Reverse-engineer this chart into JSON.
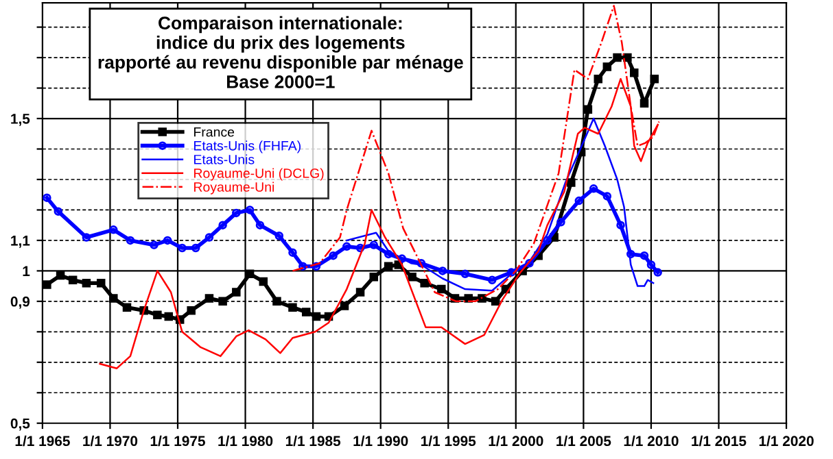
{
  "chart_data": {
    "type": "line",
    "title": "Comparaison internationale:\nindice du prix des logements\nrapporté au revenu disponible par ménage\nBase 2000=1",
    "xlim": [
      "1965-01-01",
      "2020-01-01"
    ],
    "xticks": [
      {
        "value": "1965-01-01",
        "label": "1/1 1965"
      },
      {
        "value": "1970-01-01",
        "label": "1/1 1970"
      },
      {
        "value": "1975-01-01",
        "label": "1/1 1975"
      },
      {
        "value": "1980-01-01",
        "label": "1/1 1980"
      },
      {
        "value": "1985-01-01",
        "label": "1/1 1985"
      },
      {
        "value": "1990-01-01",
        "label": "1/1 1990"
      },
      {
        "value": "1995-01-01",
        "label": "1/1 1995"
      },
      {
        "value": "2000-01-01",
        "label": "1/1 2000"
      },
      {
        "value": "2005-01-01",
        "label": "1/1 2005"
      },
      {
        "value": "2010-01-01",
        "label": "1/1 2010"
      },
      {
        "value": "2015-01-01",
        "label": "1/1 2015"
      },
      {
        "value": "2020-01-01",
        "label": "1/1 2020"
      }
    ],
    "ylim": [
      0.5,
      1.88
    ],
    "yticks": [
      {
        "value": 0.5,
        "label": "0,5"
      },
      {
        "value": 0.6,
        "label": null
      },
      {
        "value": 0.7,
        "label": null
      },
      {
        "value": 0.8,
        "label": null
      },
      {
        "value": 0.9,
        "label": "0,9"
      },
      {
        "value": 1,
        "label": "1"
      },
      {
        "value": 1.1,
        "label": "1,1"
      },
      {
        "value": 1.2,
        "label": null
      },
      {
        "value": 1.3,
        "label": null
      },
      {
        "value": 1.4,
        "label": null
      },
      {
        "value": 1.5,
        "label": "1,5"
      },
      {
        "value": 1.6,
        "label": null
      },
      {
        "value": 1.7,
        "label": null
      },
      {
        "value": 1.8,
        "label": null
      }
    ],
    "grid": true,
    "legend": "top left",
    "series": [
      {
        "name": "France",
        "color": "#000000",
        "marker": "square",
        "line_style": "solid",
        "x": [
          "1965-05",
          "1966-05",
          "1967-04",
          "1968-04",
          "1969-05",
          "1970-04",
          "1971-04",
          "1972-07",
          "1973-07",
          "1974-05",
          "1975-03",
          "1976-01",
          "1977-05",
          "1978-05",
          "1979-05",
          "1980-05",
          "1981-05",
          "1982-05",
          "1983-07",
          "1984-07",
          "1985-04",
          "1986-03",
          "1987-05",
          "1988-07",
          "1989-07",
          "1990-08",
          "1991-05",
          "1992-05",
          "1993-04",
          "1994-07",
          "1995-07",
          "1996-07",
          "1997-07",
          "1998-07",
          "1999-04",
          "2000-07",
          "2001-09",
          "2002-11",
          "2004-02",
          "2004-11",
          "2005-05",
          "2006-02",
          "2006-10",
          "2007-07",
          "2008-04",
          "2008-10",
          "2009-07",
          "2010-04"
        ],
        "values": [
          0.955,
          0.985,
          0.97,
          0.96,
          0.96,
          0.91,
          0.88,
          0.87,
          0.855,
          0.85,
          0.84,
          0.87,
          0.91,
          0.9,
          0.93,
          0.99,
          0.965,
          0.9,
          0.88,
          0.865,
          0.85,
          0.85,
          0.885,
          0.93,
          0.98,
          1.015,
          1.02,
          0.98,
          0.96,
          0.94,
          0.91,
          0.91,
          0.91,
          0.9,
          0.94,
          1.0,
          1.05,
          1.11,
          1.29,
          1.39,
          1.53,
          1.63,
          1.67,
          1.7,
          1.7,
          1.65,
          1.55,
          1.63
        ]
      },
      {
        "name": "Etats-Unis (FHFA)",
        "color": "#0000ff",
        "marker": "circle",
        "line_style": "solid",
        "x": [
          "1965-05",
          "1966-03",
          "1968-04",
          "1970-04",
          "1971-07",
          "1973-04",
          "1974-04",
          "1975-05",
          "1976-05",
          "1977-05",
          "1978-05",
          "1979-05",
          "1980-05",
          "1981-02",
          "1982-07",
          "1983-07",
          "1984-04",
          "1985-04",
          "1986-07",
          "1987-07",
          "1988-07",
          "1989-07",
          "1990-08",
          "1991-08",
          "1993-01",
          "1994-08",
          "1996-04",
          "1998-04",
          "1999-09",
          "2001-01",
          "2002-05",
          "2003-05",
          "2004-09",
          "2005-10",
          "2006-10",
          "2007-10",
          "2008-07",
          "2009-07",
          "2010-01",
          "2010-07"
        ],
        "values": [
          1.24,
          1.195,
          1.11,
          1.135,
          1.1,
          1.085,
          1.1,
          1.075,
          1.075,
          1.11,
          1.15,
          1.19,
          1.2,
          1.15,
          1.115,
          1.06,
          1.015,
          1.015,
          1.05,
          1.08,
          1.075,
          1.085,
          1.055,
          1.04,
          1.025,
          1.0,
          0.99,
          0.97,
          0.995,
          1.025,
          1.1,
          1.16,
          1.23,
          1.27,
          1.245,
          1.15,
          1.055,
          1.05,
          1.02,
          0.995
        ]
      },
      {
        "name": "Etats-Unis",
        "color": "#0000ff",
        "marker": "none",
        "line_style": "solid",
        "x": [
          "1987-07",
          "1989-09",
          "1990-08",
          "1992-04",
          "1993-01",
          "1994-08",
          "1996-04",
          "1998-04",
          "1999-09",
          "2001-01",
          "2002-05",
          "2003-09",
          "2004-09",
          "2005-10",
          "2006-08",
          "2007-07",
          "2008-01",
          "2008-07",
          "2009-01",
          "2009-07",
          "2009-10",
          "2010-03"
        ],
        "values": [
          1.1,
          1.125,
          1.065,
          1.025,
          1.02,
          0.975,
          0.94,
          0.935,
          0.99,
          1.03,
          1.12,
          1.29,
          1.39,
          1.5,
          1.41,
          1.3,
          1.21,
          1.02,
          0.95,
          0.95,
          0.97,
          0.96
        ]
      },
      {
        "name": "Royaume-Uni (DCLG)",
        "color": "#ff0000",
        "marker": "none",
        "line_style": "solid",
        "x": [
          "1969-04",
          "1970-07",
          "1971-07",
          "1972-07",
          "1973-07",
          "1974-07",
          "1975-05",
          "1976-09",
          "1978-03",
          "1979-05",
          "1980-04",
          "1981-07",
          "1982-08",
          "1983-07",
          "1985-03",
          "1986-03",
          "1987-07",
          "1988-11",
          "1989-05",
          "1990-05",
          "1991-08",
          "1993-05",
          "1994-07",
          "1996-04",
          "1997-09",
          "1999-01",
          "2000-05",
          "2001-09",
          "2002-05",
          "2003-08",
          "2004-08",
          "2005-02",
          "2006-02",
          "2007-02",
          "2007-10",
          "2008-07",
          "2008-10",
          "2009-04",
          "2009-10",
          "2010-07"
        ],
        "values": [
          0.695,
          0.68,
          0.72,
          0.87,
          1.0,
          0.93,
          0.8,
          0.75,
          0.72,
          0.785,
          0.805,
          0.775,
          0.73,
          0.78,
          0.8,
          0.83,
          0.94,
          1.09,
          1.2,
          1.11,
          1.02,
          0.815,
          0.815,
          0.76,
          0.79,
          0.905,
          0.995,
          1.065,
          1.15,
          1.26,
          1.45,
          1.47,
          1.45,
          1.54,
          1.63,
          1.54,
          1.41,
          1.36,
          1.42,
          1.48
        ]
      },
      {
        "name": "Royaume-Uni",
        "color": "#ff0000",
        "marker": "none",
        "line_style": "dashdot",
        "x": [
          "1983-07",
          "1985-07",
          "1987-01",
          "1987-07",
          "1989-05",
          "1990-08",
          "1991-09",
          "1993-01",
          "1994-01",
          "1995-08",
          "1997-01",
          "1998-09",
          "2000-01",
          "2001-05",
          "2003-03",
          "2004-05",
          "2005-05",
          "2006-05",
          "2007-04",
          "2007-11",
          "2008-07",
          "2009-01",
          "2009-08",
          "2010-03",
          "2010-08"
        ],
        "values": [
          1.0,
          1.025,
          1.11,
          1.2,
          1.46,
          1.32,
          1.14,
          1.02,
          0.93,
          0.9,
          0.9,
          0.94,
          1.0,
          1.09,
          1.32,
          1.66,
          1.63,
          1.75,
          1.87,
          1.75,
          1.54,
          1.41,
          1.42,
          1.44,
          1.49
        ]
      }
    ]
  }
}
